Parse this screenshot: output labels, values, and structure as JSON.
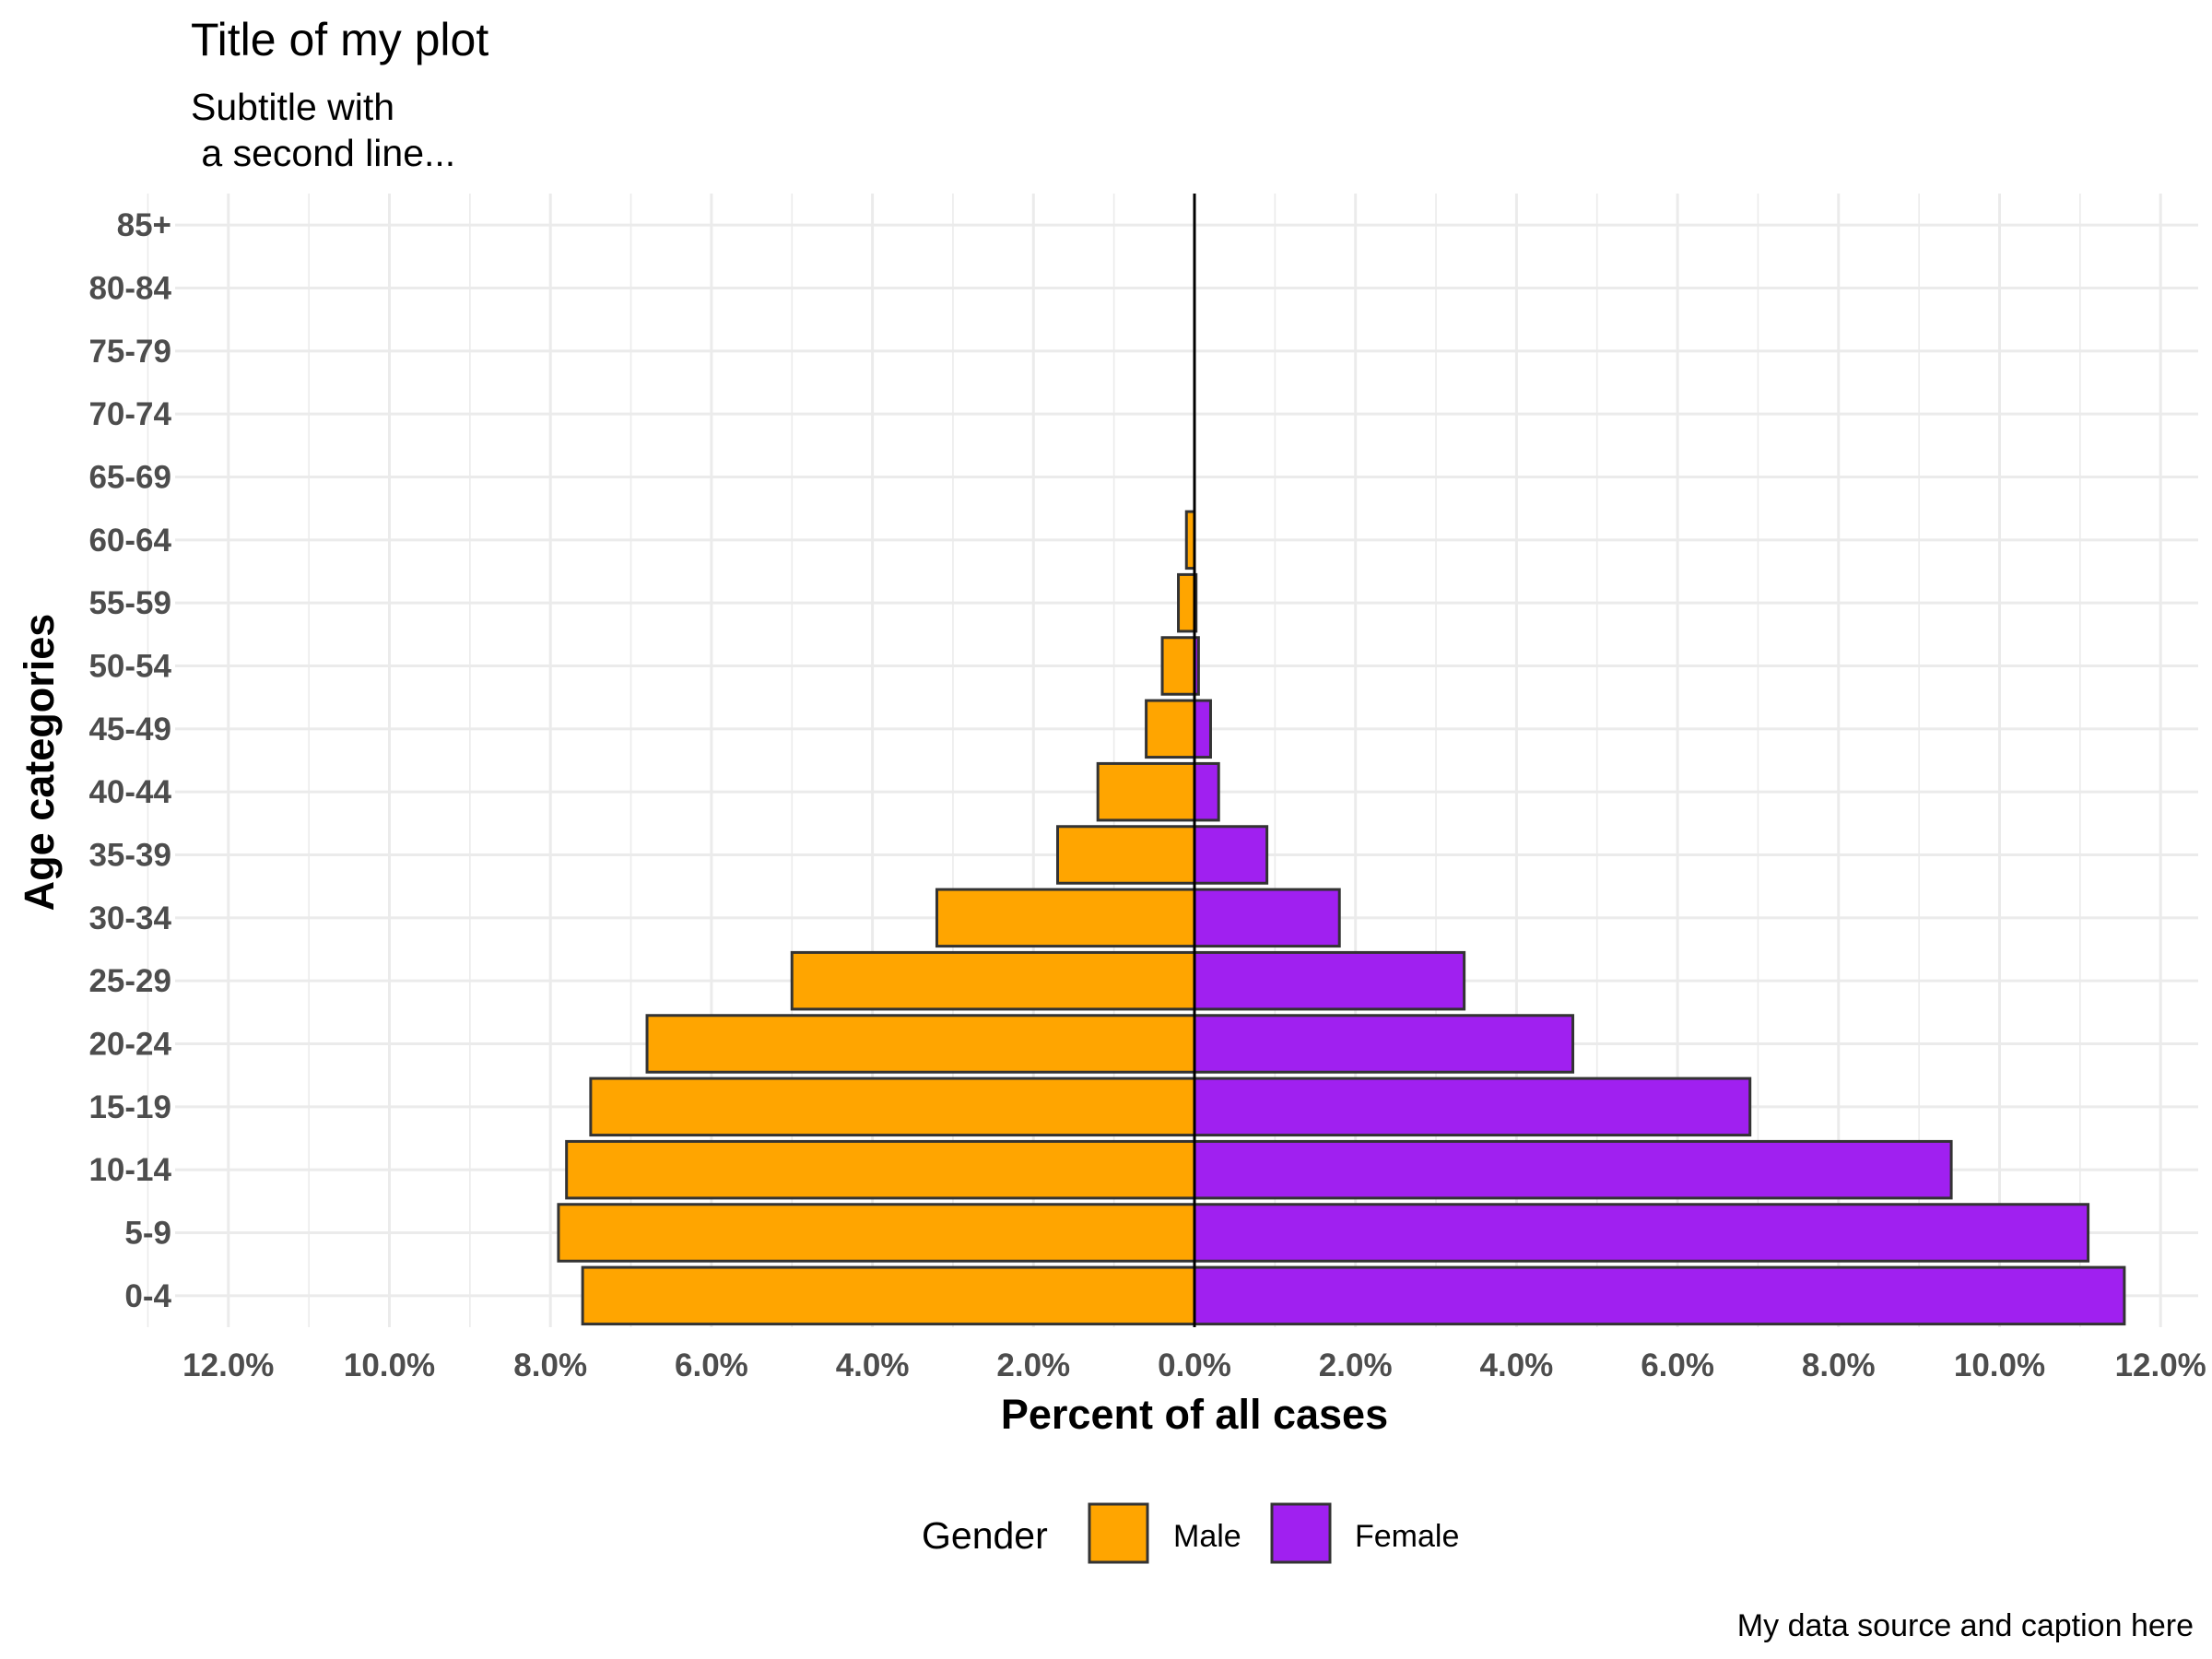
{
  "chart_data": {
    "type": "bar",
    "orientation": "horizontal",
    "title": "Title of my plot",
    "subtitle_lines": [
      "Subtitle with",
      " a second line..."
    ],
    "xlabel": "Percent of all cases",
    "ylabel": "Age categories",
    "caption": "My data source and caption here",
    "categories": [
      "0-4",
      "5-9",
      "10-14",
      "15-19",
      "20-24",
      "25-29",
      "30-34",
      "35-39",
      "40-44",
      "45-49",
      "50-54",
      "55-59",
      "60-64",
      "65-69",
      "70-74",
      "75-79",
      "80-84",
      "85+"
    ],
    "series": [
      {
        "name": "Male",
        "color": "#FFA500",
        "direction": "left",
        "values": [
          7.6,
          7.9,
          7.8,
          7.5,
          6.8,
          5.0,
          3.2,
          1.7,
          1.2,
          0.6,
          0.4,
          0.2,
          0.1,
          0,
          0,
          0,
          0,
          0
        ]
      },
      {
        "name": "Female",
        "color": "#A020F0",
        "direction": "right",
        "values": [
          11.55,
          11.1,
          9.4,
          6.9,
          4.7,
          3.35,
          1.8,
          0.9,
          0.3,
          0.2,
          0.05,
          0.02,
          0,
          0,
          0,
          0,
          0,
          0
        ]
      }
    ],
    "xlim": [
      -12,
      12
    ],
    "x_ticks": [
      -12,
      -10,
      -8,
      -6,
      -4,
      -2,
      0,
      2,
      4,
      6,
      8,
      10,
      12
    ],
    "x_tick_labels": [
      "12.0%",
      "10.0%",
      "8.0%",
      "6.0%",
      "4.0%",
      "2.0%",
      "0.0%",
      "2.0%",
      "4.0%",
      "6.0%",
      "8.0%",
      "10.0%",
      "12.0%"
    ],
    "grid": true,
    "bar_outline_color": "#333333",
    "legend": {
      "title": "Gender",
      "placement": "bottom",
      "items": [
        "Male",
        "Female"
      ]
    }
  }
}
